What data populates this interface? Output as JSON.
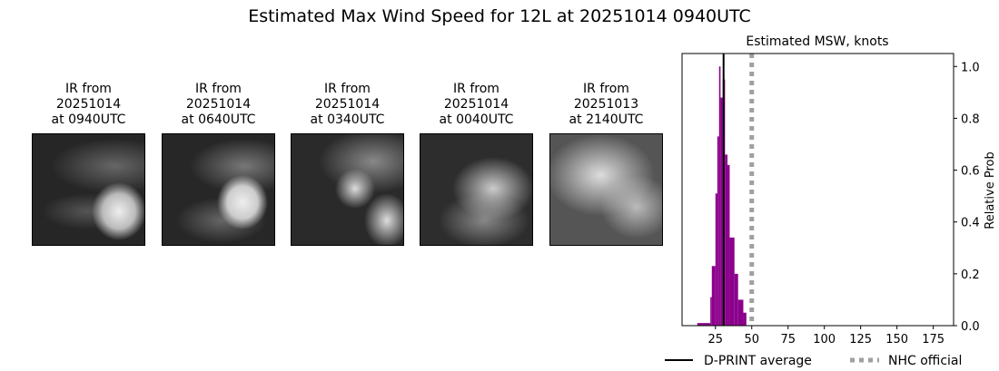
{
  "title": "Estimated Max Wind Speed for 12L at 20251014 0940UTC",
  "ir_panels": [
    {
      "line1": "IR from",
      "line2": "20251014",
      "line3": "at 0940UTC"
    },
    {
      "line1": "IR from",
      "line2": "20251014",
      "line3": "at 0640UTC"
    },
    {
      "line1": "IR from",
      "line2": "20251014",
      "line3": "at 0340UTC"
    },
    {
      "line1": "IR from",
      "line2": "20251014",
      "line3": "at 0040UTC"
    },
    {
      "line1": "IR from",
      "line2": "20251013",
      "line3": "at 2140UTC"
    }
  ],
  "chart_data": {
    "type": "bar",
    "title": "Estimated MSW, knots",
    "xlabel": "",
    "ylabel": "Relative Prob",
    "xlim": [
      2,
      189
    ],
    "ylim": [
      0,
      1.05
    ],
    "xticks": [
      25,
      50,
      75,
      100,
      125,
      150,
      175
    ],
    "yticks": [
      0.0,
      0.2,
      0.4,
      0.6,
      0.8,
      1.0
    ],
    "ytick_labels": [
      "0.0",
      "0.2",
      "0.4",
      "0.6",
      "0.8",
      "1.0"
    ],
    "y_axis_side": "right",
    "grid": false,
    "bar_color": "#8b008b",
    "bins": [
      {
        "start": 12.5,
        "end": 21.5,
        "value": 0.01
      },
      {
        "start": 21.5,
        "end": 22.5,
        "value": 0.11
      },
      {
        "start": 22.5,
        "end": 25.0,
        "value": 0.23
      },
      {
        "start": 25.0,
        "end": 26.3,
        "value": 0.51
      },
      {
        "start": 26.3,
        "end": 27.5,
        "value": 0.73
      },
      {
        "start": 27.5,
        "end": 28.5,
        "value": 1.0
      },
      {
        "start": 28.5,
        "end": 30.0,
        "value": 0.88
      },
      {
        "start": 30.0,
        "end": 31.6,
        "value": 0.95
      },
      {
        "start": 31.6,
        "end": 33.3,
        "value": 0.66
      },
      {
        "start": 33.3,
        "end": 34.8,
        "value": 0.62
      },
      {
        "start": 34.8,
        "end": 38.1,
        "value": 0.34
      },
      {
        "start": 38.1,
        "end": 40.6,
        "value": 0.2
      },
      {
        "start": 40.6,
        "end": 44.2,
        "value": 0.1
      },
      {
        "start": 44.2,
        "end": 46.3,
        "value": 0.05
      }
    ],
    "vlines": [
      {
        "name": "D-PRINT average",
        "x": 30.6,
        "color": "#000000",
        "style": "solid"
      },
      {
        "name": "NHC official",
        "x": 50,
        "color": "#a0a0a0",
        "style": "dotted"
      }
    ],
    "legend_placement": "bottom"
  }
}
